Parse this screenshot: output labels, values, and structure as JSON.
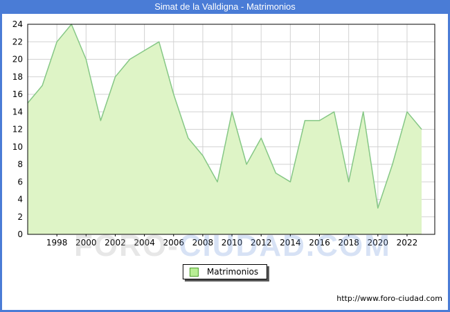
{
  "window": {
    "title": "Simat de la Valldigna - Matrimonios"
  },
  "legend": {
    "label": "Matrimonios"
  },
  "footer": {
    "url": "http://www.foro-ciudad.com"
  },
  "watermark": {
    "part1": "FORO-",
    "part2": "CIUDAD.COM"
  },
  "colors": {
    "titlebar": "#4a7cd6",
    "frame": "#4a7cd6",
    "area_fill": "#def4c6",
    "area_line": "#85c785",
    "grid": "#d2d2d2",
    "plot_border": "#000000",
    "legend_swatch_fill": "#b8ee95",
    "legend_swatch_border": "#4e9e2e"
  },
  "chart_data": {
    "type": "area",
    "title": "Simat de la Valldigna - Matrimonios",
    "series_name": "Matrimonios",
    "x": [
      1996,
      1997,
      1998,
      1999,
      2000,
      2001,
      2002,
      2003,
      2004,
      2005,
      2006,
      2007,
      2008,
      2009,
      2010,
      2011,
      2012,
      2013,
      2014,
      2015,
      2016,
      2017,
      2018,
      2019,
      2020,
      2021,
      2022,
      2023
    ],
    "values": [
      15,
      17,
      22,
      24,
      20,
      13,
      18,
      20,
      21,
      22,
      16,
      11,
      9,
      6,
      14,
      8,
      11,
      7,
      6,
      13,
      13,
      14,
      6,
      14,
      3,
      8,
      14,
      12
    ],
    "xlim": [
      1996,
      2023.9
    ],
    "ylim": [
      0,
      24
    ],
    "y_ticks": [
      0,
      2,
      4,
      6,
      8,
      10,
      12,
      14,
      16,
      18,
      20,
      22,
      24
    ],
    "x_ticks": [
      1998,
      2000,
      2002,
      2004,
      2006,
      2008,
      2010,
      2012,
      2014,
      2016,
      2018,
      2020,
      2022
    ],
    "grid": true,
    "legend_position": "bottom-center",
    "xlabel": "",
    "ylabel": ""
  }
}
